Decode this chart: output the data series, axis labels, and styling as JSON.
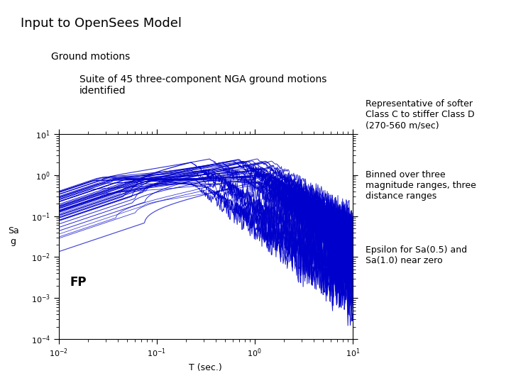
{
  "title": "Input to OpenSees Model",
  "subtitle1": "Ground motions",
  "subtitle2": "Suite of 45 three-component NGA ground motions\nidentified",
  "fp_label": "FP",
  "ylabel_line1": "Sa",
  "ylabel_line2": "g",
  "xlabel": "T (sec.)",
  "note1": "Representative of softer\nClass C to stiffer Class D\n(270-560 m/sec)",
  "note2": "Binned over three\nmagnitude ranges, three\ndistance ranges",
  "note3": "Epsilon for Sa(0.5) and\nSa(1.0) near zero",
  "line_color": "#0000CC",
  "bg_color": "#ffffff",
  "n_motions": 45,
  "seed": 42
}
